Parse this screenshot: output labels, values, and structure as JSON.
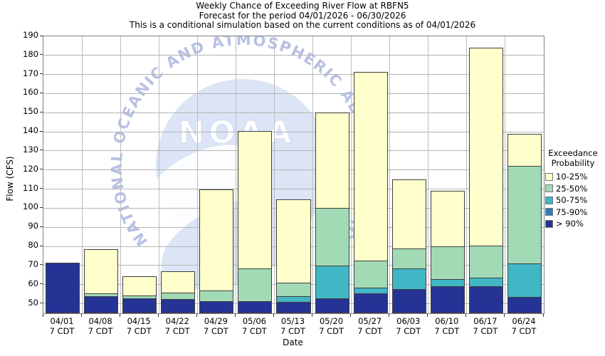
{
  "title": {
    "line1": "Weekly Chance of Exceeding River Flow at RBFN5",
    "line2": "Forecast for the period 04/01/2026 - 06/30/2026",
    "line3": "This is a conditional simulation based on the current conditions as of 04/01/2026"
  },
  "axes": {
    "y_label": "Flow (CFS)",
    "x_label": "Date",
    "y_ticks": [
      190,
      180,
      170,
      160,
      150,
      140,
      130,
      120,
      110,
      100,
      90,
      80,
      70,
      60,
      50
    ],
    "x_sub_label": "7 CDT"
  },
  "legend": {
    "title_line1": "Exceedance",
    "title_line2": "Probability",
    "items": [
      {
        "label": "10-25%",
        "color": "#FFFFCC"
      },
      {
        "label": "25-50%",
        "color": "#A1DAB4"
      },
      {
        "label": "50-75%",
        "color": "#41B6C4"
      },
      {
        "label": "75-90%",
        "color": "#2C7FB8"
      },
      {
        "label": "> 90%",
        "color": "#253494"
      }
    ]
  },
  "watermark": {
    "org": "NOAA",
    "ring_text": "NATIONAL OCEANIC AND ATMOSPHERIC ADMINISTRATION",
    "circle_color": "#dbe5f6",
    "ring_text_color": "#b7c1e5"
  },
  "chart_data": {
    "type": "bar",
    "stacked": true,
    "title": "Weekly Chance of Exceeding River Flow at RBFN5",
    "xlabel": "Date",
    "ylabel": "Flow (CFS)",
    "ylim": [
      45,
      190
    ],
    "y_tick_step": 10,
    "grid": true,
    "legend_position": "right",
    "band_order_bottom_to_top": [
      ">90%",
      "75-90%",
      "50-75%",
      "25-50%",
      "10-25%"
    ],
    "band_colors": {
      ">90%": "#253494",
      "75-90%": "#2C7FB8",
      "50-75%": "#41B6C4",
      "25-50%": "#A1DAB4",
      "10-25%": "#FFFFCC"
    },
    "categories": [
      "04/01",
      "04/08",
      "04/15",
      "04/22",
      "04/29",
      "05/06",
      "05/13",
      "05/20",
      "05/27",
      "06/03",
      "06/10",
      "06/17",
      "06/24"
    ],
    "bars": [
      {
        "date": "04/01",
        "tops": {
          ">90%": 71.5,
          "75-90%": null,
          "50-75%": null,
          "25-50%": null,
          "10-25%": null
        }
      },
      {
        "date": "04/08",
        "tops": {
          ">90%": 54,
          "75-90%": null,
          "50-75%": null,
          "25-50%": 55.5,
          "10-25%": 78.5
        }
      },
      {
        "date": "04/15",
        "tops": {
          ">90%": 53,
          "75-90%": null,
          "50-75%": null,
          "25-50%": 54.5,
          "10-25%": 64.5
        }
      },
      {
        "date": "04/22",
        "tops": {
          ">90%": 52.5,
          "75-90%": null,
          "50-75%": null,
          "25-50%": 56,
          "10-25%": 67
        }
      },
      {
        "date": "04/29",
        "tops": {
          ">90%": 51.5,
          "75-90%": null,
          "50-75%": null,
          "25-50%": 57,
          "10-25%": 110
        }
      },
      {
        "date": "05/06",
        "tops": {
          ">90%": 51.5,
          "75-90%": null,
          "50-75%": null,
          "25-50%": 68.5,
          "10-25%": 140.5
        }
      },
      {
        "date": "05/13",
        "tops": {
          ">90%": 51,
          "75-90%": null,
          "50-75%": 54,
          "25-50%": 61,
          "10-25%": 104.5
        }
      },
      {
        "date": "05/20",
        "tops": {
          ">90%": 53,
          "75-90%": null,
          "50-75%": 70,
          "25-50%": 100,
          "10-25%": 150
        }
      },
      {
        "date": "05/27",
        "tops": {
          ">90%": 55.5,
          "75-90%": null,
          "50-75%": 58.5,
          "25-50%": 72.5,
          "10-25%": 171.5
        }
      },
      {
        "date": "06/03",
        "tops": {
          ">90%": 57.5,
          "75-90%": null,
          "50-75%": 68.5,
          "25-50%": 79,
          "10-25%": 115
        }
      },
      {
        "date": "06/10",
        "tops": {
          ">90%": 59,
          "75-90%": null,
          "50-75%": 63,
          "25-50%": 80,
          "10-25%": 109
        }
      },
      {
        "date": "06/17",
        "tops": {
          ">90%": 59,
          "75-90%": null,
          "50-75%": 63.5,
          "25-50%": 80.5,
          "10-25%": 184
        }
      },
      {
        "date": "06/24",
        "tops": {
          ">90%": 53.5,
          "75-90%": null,
          "50-75%": 71,
          "25-50%": 122,
          "10-25%": 139
        }
      }
    ]
  }
}
